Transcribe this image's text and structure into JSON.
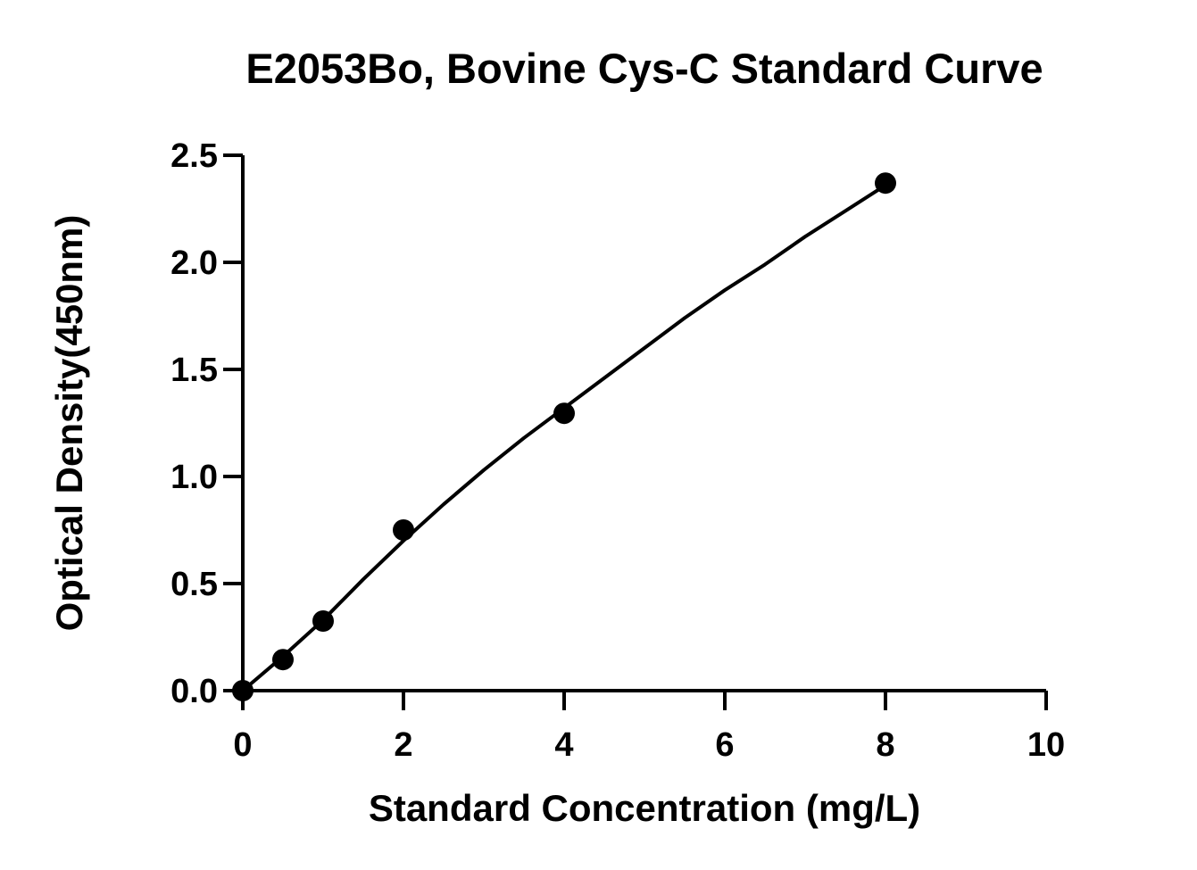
{
  "chart_data": {
    "type": "scatter",
    "title": "E2053Bo, Bovine Cys-C Standard Curve",
    "xlabel": "Standard Concentration (mg/L)",
    "ylabel": "Optical Density(450nm)",
    "xlim": [
      0,
      10
    ],
    "ylim": [
      0,
      2.5
    ],
    "xticks": [
      "0",
      "2",
      "4",
      "6",
      "8",
      "10"
    ],
    "yticks": [
      "0.0",
      "0.5",
      "1.0",
      "1.5",
      "2.0",
      "2.5"
    ],
    "grid": false,
    "legend": "none",
    "series": [
      {
        "x": [
          0,
          0.5,
          1,
          2,
          4,
          8
        ],
        "y": [
          0.0,
          0.145,
          0.325,
          0.75,
          1.295,
          2.37
        ]
      }
    ],
    "fit_curve": {
      "x": [
        0,
        0.5,
        1,
        1.5,
        2,
        2.5,
        3,
        3.5,
        4,
        4.5,
        5,
        5.5,
        6,
        6.5,
        7,
        7.5,
        8
      ],
      "y": [
        0.0,
        0.16,
        0.33,
        0.52,
        0.7,
        0.87,
        1.03,
        1.18,
        1.32,
        1.46,
        1.6,
        1.74,
        1.87,
        1.99,
        2.12,
        2.24,
        2.36
      ]
    },
    "colors": {
      "points": "#000000",
      "curve": "#000000",
      "axes": "#000000"
    }
  }
}
